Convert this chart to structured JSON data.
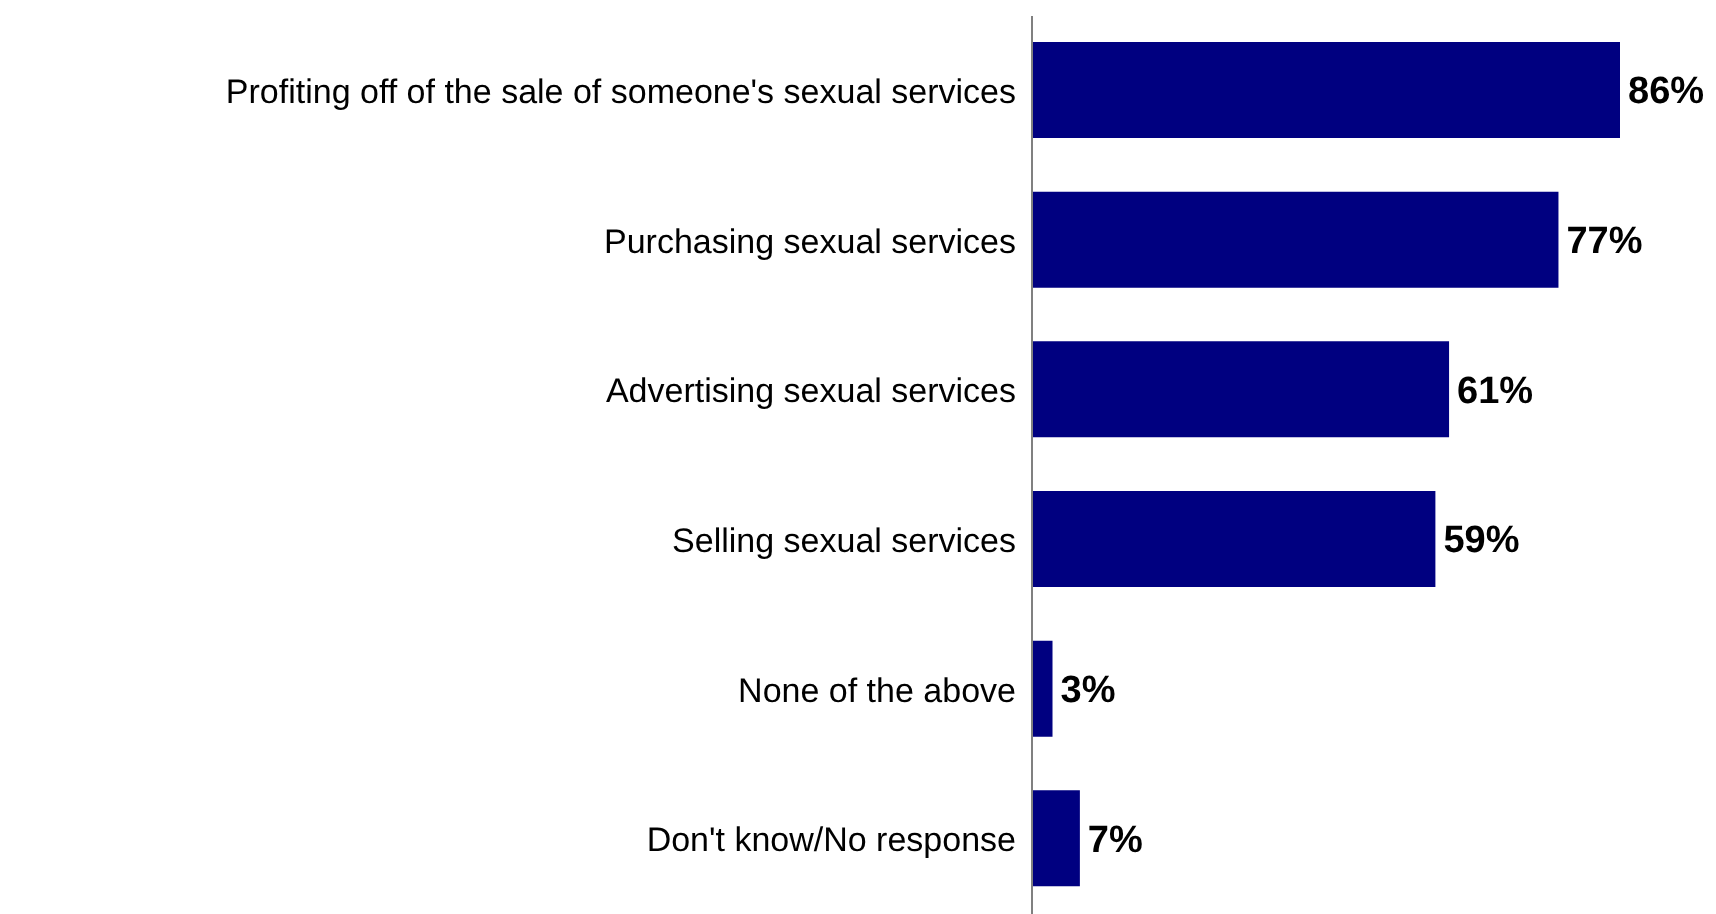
{
  "chart_data": {
    "type": "bar",
    "orientation": "horizontal",
    "categories": [
      "Profiting off of the sale of someone's sexual services",
      "Purchasing sexual services",
      "Advertising sexual services",
      "Selling sexual services",
      "None of the above",
      "Don't know/No response"
    ],
    "values": [
      86,
      77,
      61,
      59,
      3,
      7
    ],
    "value_labels": [
      "86%",
      "77%",
      "61%",
      "59%",
      "3%",
      "7%"
    ],
    "color": "#000080"
  }
}
